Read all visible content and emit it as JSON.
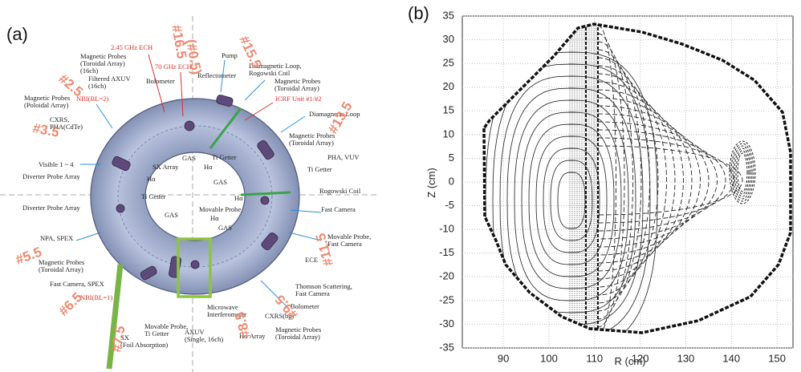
{
  "panel_a": {
    "label": "(a)",
    "labels": [
      [
        "Magnetic Probes",
        "(Toroidal Array)",
        "(16ch)"
      ],
      [
        "Filtered AXUV",
        "(16ch)"
      ],
      [
        "Magnetic Probes",
        "(Poloidal Array)"
      ],
      [
        "CXRS,",
        "PHA(CdTe)"
      ],
      [
        "Visible 1 ~ 4"
      ],
      [
        "Diverter Probe Array"
      ],
      [
        "Diverter Probe Array"
      ],
      [
        "NPA, SPEX"
      ],
      [
        "Magnetic Probes",
        "(Toroidal Array)"
      ],
      [
        "Fast Camera, SPEX"
      ],
      [
        "SX",
        "(Foil Absorption)"
      ],
      [
        "Movable Probe,",
        "Ti Getter"
      ],
      [
        "AXUV",
        "(Single, 16ch)"
      ],
      [
        "Microwave",
        "Interferometer"
      ],
      [
        "Hα Array"
      ],
      [
        "CXRS(bg)"
      ],
      [
        "Magnetic Probes",
        "(Toroidal Array)"
      ],
      [
        "Bolometer"
      ],
      [
        "Thomson Scattering,",
        "Fast Camera"
      ],
      [
        "ECE"
      ],
      [
        "Movable Probe,",
        "Fast Camera"
      ],
      [
        "Fast Camera"
      ],
      [
        "Rogowski Coil"
      ],
      [
        "PHA, VUV"
      ],
      [
        "Ti Getter"
      ],
      [
        "Magnetic Probes",
        "(Toroidal Array)"
      ],
      [
        "Diamagnetic Loop"
      ],
      [
        "Magnetic Probes",
        "(Toroidal Array)"
      ],
      [
        "Diamagnetic Loop,",
        "Rogowski Coil"
      ],
      [
        "Pump"
      ],
      [
        "Reflectometer"
      ],
      [
        "Bolometer"
      ],
      [
        "SX Array"
      ],
      [
        "GAS"
      ],
      [
        "Ti Getter"
      ],
      [
        "Hα"
      ],
      [
        "GAS"
      ],
      [
        "Hα"
      ],
      [
        "Ti Getter"
      ],
      [
        "Hα"
      ],
      [
        "GAS"
      ],
      [
        "Movable Probe"
      ],
      [
        "Hα"
      ],
      [
        "GAS"
      ]
    ],
    "red_labels": [
      "2.45 GHz ECH",
      "NBI(BL=2)",
      "NBI(BL=1)",
      "70 GHz ECH",
      "ICRF Unit #1/#2"
    ],
    "port_labels": [
      "#16.5",
      "(#0.5)",
      "#15.5",
      "#2.5",
      "#3.5",
      "#13.5",
      "#5.5",
      "#11.5",
      "#6.5",
      "#7.5",
      "#8.5",
      "#9.5"
    ]
  },
  "panel_b": {
    "label": "(b)",
    "x_label": "R (cm)",
    "y_label": "Z (cm)",
    "xlim": [
      81,
      153.5
    ],
    "ylim": [
      -35,
      35
    ],
    "xticks": [
      90,
      100,
      110,
      120,
      130,
      140,
      150
    ],
    "yticks": [
      -35,
      -30,
      -25,
      -20,
      -15,
      -10,
      -5,
      0,
      5,
      10,
      15,
      20,
      25,
      30,
      35
    ],
    "grid": true
  }
}
